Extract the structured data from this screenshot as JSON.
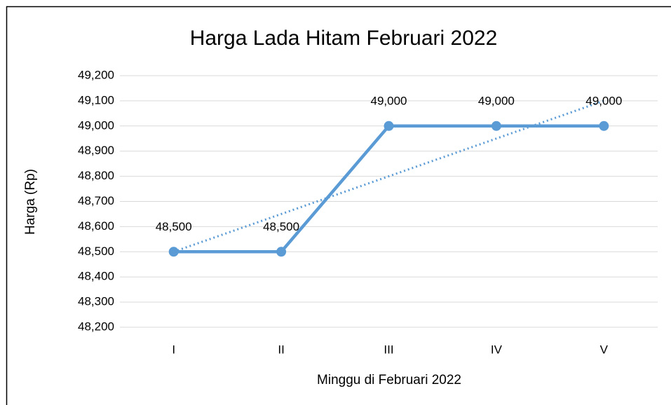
{
  "chart_data": {
    "type": "line",
    "title": "Harga Lada Hitam Februari 2022",
    "x_label": "Minggu di Februari 2022",
    "y_label": "Harga (Rp)",
    "categories": [
      "I",
      "II",
      "III",
      "IV",
      "V"
    ],
    "series": [
      {
        "color": "#5b9bd5",
        "values": [
          48500,
          48500,
          49000,
          49000,
          49000
        ],
        "value_labels": [
          "48,500",
          "48,500",
          "49,000",
          "49,000",
          "49,000"
        ]
      }
    ],
    "trendline": {
      "style": "dotted",
      "color": "#5b9bd5",
      "values": [
        48500,
        48650,
        48800,
        48950,
        49100
      ]
    },
    "ylim": [
      48200,
      49200
    ],
    "yticks": [
      {
        "value": 48200,
        "label": "48,200"
      },
      {
        "value": 48300,
        "label": "48,300"
      },
      {
        "value": 48400,
        "label": "48,400"
      },
      {
        "value": 48500,
        "label": "48,500"
      },
      {
        "value": 48600,
        "label": "48,600"
      },
      {
        "value": 48700,
        "label": "48,700"
      },
      {
        "value": 48800,
        "label": "48,800"
      },
      {
        "value": 48900,
        "label": "48,900"
      },
      {
        "value": 49000,
        "label": "49,000"
      },
      {
        "value": 49100,
        "label": "49,100"
      },
      {
        "value": 49200,
        "label": "49,200"
      }
    ],
    "grid": true
  }
}
